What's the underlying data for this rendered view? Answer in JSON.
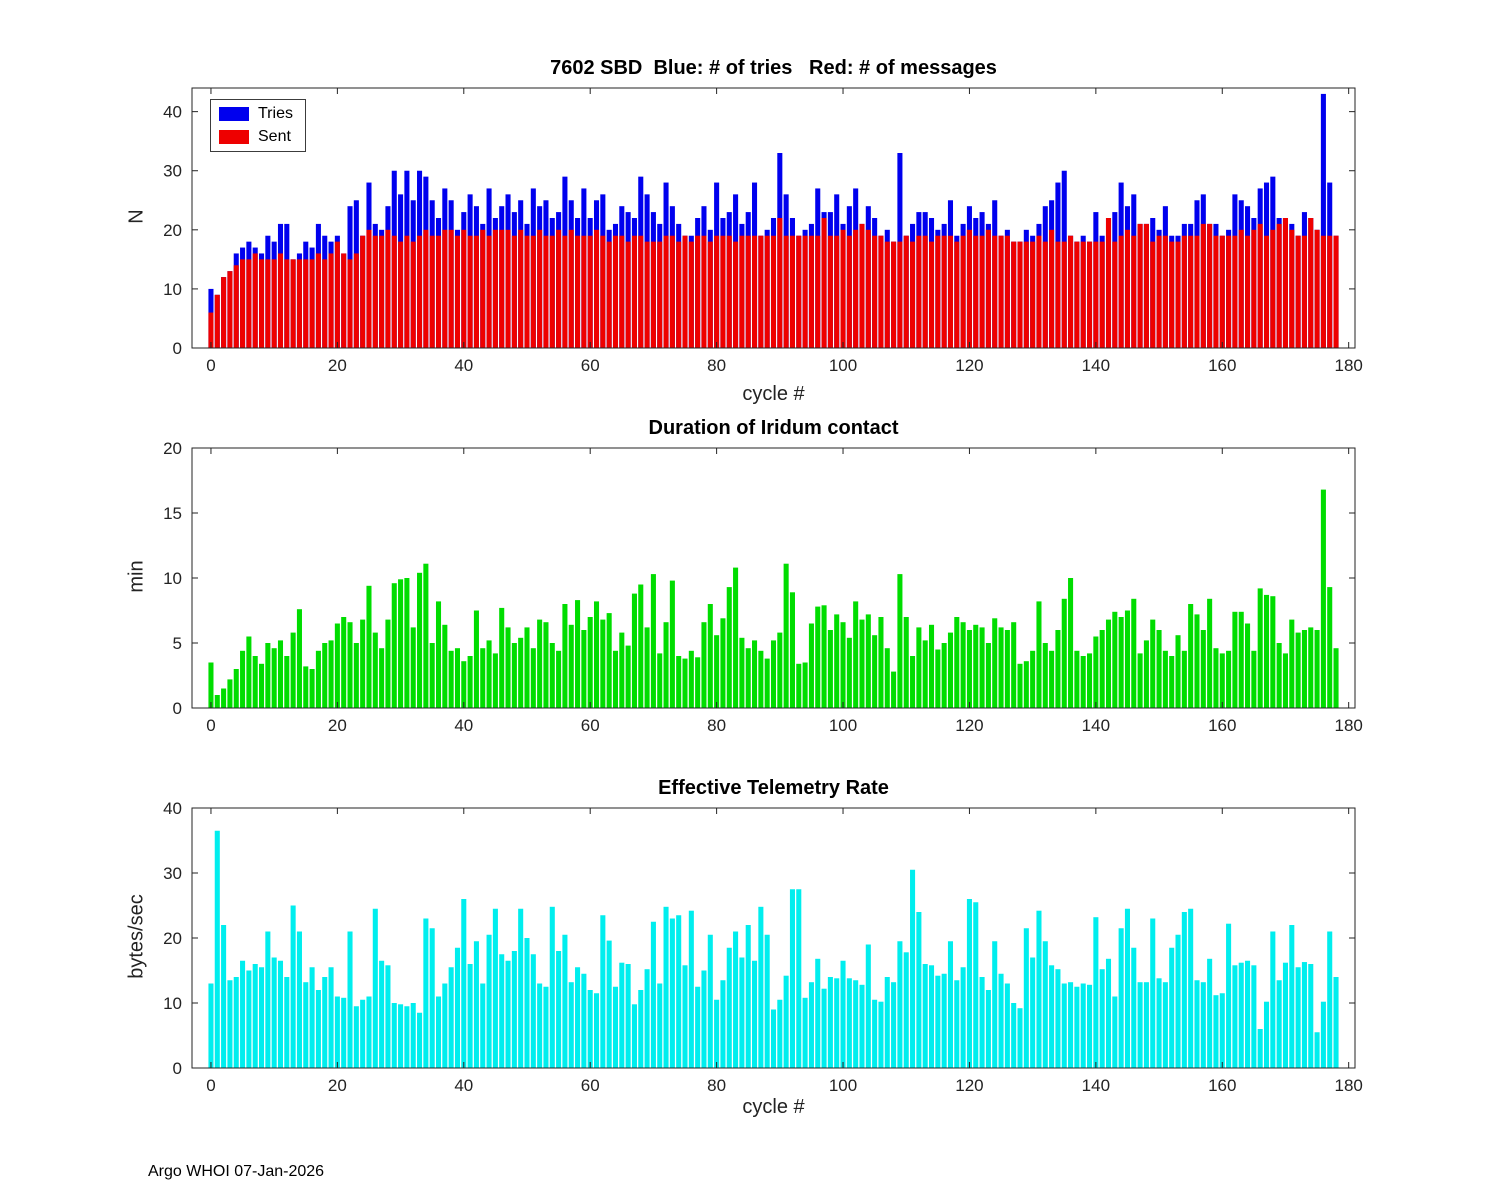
{
  "footer": {
    "text": "Argo WHOI 07-Jan-2026"
  },
  "chart_data": [
    {
      "type": "bar",
      "id": "tries-sent",
      "title": "7602 SBD  Blue: # of tries   Red: # of messages",
      "xlabel": "cycle #",
      "ylabel": "N",
      "xlim": [
        -3,
        181
      ],
      "ylim": [
        0,
        44
      ],
      "xticks": [
        0,
        20,
        40,
        60,
        80,
        100,
        120,
        140,
        160,
        180
      ],
      "yticks": [
        0,
        10,
        20,
        30,
        40
      ],
      "grid": false,
      "legend": {
        "position": "top-left",
        "entries": [
          {
            "label": "Tries",
            "color": "#0000EE"
          },
          {
            "label": "Sent",
            "color": "#EE0000"
          }
        ]
      },
      "x_is_cycle_index": true,
      "series": [
        {
          "name": "Tries",
          "color": "#0000EE",
          "values": [
            10,
            9,
            12,
            13,
            16,
            17,
            18,
            17,
            16,
            19,
            18,
            21,
            21,
            15,
            16,
            18,
            17,
            21,
            19,
            18,
            19,
            16,
            24,
            25,
            19,
            28,
            21,
            20,
            24,
            30,
            26,
            30,
            25,
            30,
            29,
            25,
            22,
            27,
            25,
            20,
            23,
            26,
            24,
            21,
            27,
            22,
            24,
            26,
            23,
            25,
            21,
            27,
            24,
            25,
            22,
            23,
            29,
            25,
            22,
            27,
            22,
            25,
            26,
            20,
            21,
            24,
            23,
            22,
            29,
            26,
            23,
            21,
            28,
            24,
            21,
            19,
            19,
            22,
            24,
            20,
            28,
            22,
            23,
            26,
            21,
            23,
            28,
            19,
            20,
            22,
            33,
            26,
            22,
            19,
            20,
            21,
            27,
            23,
            23,
            26,
            21,
            24,
            27,
            21,
            24,
            22,
            19,
            20,
            18,
            33,
            19,
            21,
            23,
            23,
            22,
            20,
            21,
            25,
            19,
            21,
            24,
            22,
            23,
            21,
            25,
            19,
            20,
            18,
            18,
            20,
            19,
            21,
            24,
            25,
            28,
            30,
            19,
            18,
            19,
            18,
            23,
            19,
            22,
            23,
            28,
            24,
            26,
            21,
            21,
            22,
            20,
            24,
            19,
            19,
            21,
            21,
            25,
            26,
            21,
            21,
            19,
            20,
            26,
            25,
            24,
            22,
            27,
            28,
            29,
            22,
            22,
            21,
            19,
            23,
            22,
            20,
            43,
            28,
            19
          ]
        },
        {
          "name": "Sent",
          "color": "#EE0000",
          "values": [
            6,
            9,
            12,
            13,
            14,
            15,
            15,
            16,
            15,
            15,
            15,
            16,
            15,
            15,
            15,
            15,
            15,
            16,
            15,
            16,
            18,
            16,
            15,
            16,
            19,
            20,
            19,
            19,
            20,
            19,
            18,
            19,
            18,
            19,
            20,
            19,
            19,
            20,
            20,
            19,
            20,
            19,
            19,
            20,
            19,
            20,
            20,
            20,
            19,
            20,
            19,
            19,
            20,
            19,
            19,
            20,
            19,
            20,
            19,
            19,
            19,
            20,
            19,
            18,
            19,
            19,
            18,
            19,
            19,
            18,
            18,
            18,
            19,
            19,
            18,
            19,
            18,
            19,
            19,
            18,
            19,
            19,
            19,
            18,
            19,
            19,
            19,
            19,
            19,
            19,
            22,
            19,
            19,
            19,
            19,
            19,
            19,
            22,
            19,
            19,
            20,
            19,
            20,
            21,
            20,
            19,
            19,
            18,
            18,
            18,
            19,
            18,
            19,
            19,
            18,
            19,
            19,
            19,
            18,
            19,
            20,
            19,
            19,
            20,
            19,
            19,
            19,
            18,
            18,
            18,
            18,
            19,
            18,
            20,
            18,
            18,
            19,
            18,
            18,
            18,
            18,
            18,
            22,
            18,
            19,
            20,
            19,
            21,
            21,
            18,
            19,
            19,
            18,
            18,
            19,
            19,
            19,
            21,
            21,
            19,
            19,
            19,
            19,
            20,
            19,
            20,
            21,
            19,
            20,
            21,
            22,
            20,
            19,
            19,
            22,
            20,
            19,
            19,
            19
          ]
        }
      ]
    },
    {
      "type": "bar",
      "id": "iridium-duration",
      "title": "Duration of Iridum contact",
      "xlabel": "",
      "ylabel": "min",
      "xlim": [
        -3,
        181
      ],
      "ylim": [
        0,
        20
      ],
      "xticks": [
        0,
        20,
        40,
        60,
        80,
        100,
        120,
        140,
        160,
        180
      ],
      "yticks": [
        0,
        5,
        10,
        15,
        20
      ],
      "grid": false,
      "x_is_cycle_index": true,
      "series": [
        {
          "name": "Duration",
          "color": "#00DD00",
          "values": [
            3.5,
            1.0,
            1.5,
            2.2,
            3.0,
            4.4,
            5.5,
            4.0,
            3.4,
            5.0,
            4.6,
            5.2,
            4.0,
            5.8,
            7.6,
            3.2,
            3.0,
            4.4,
            5.0,
            5.2,
            6.5,
            7.0,
            6.6,
            5.0,
            6.8,
            9.4,
            5.8,
            4.6,
            6.8,
            9.6,
            9.9,
            10.0,
            6.2,
            10.4,
            11.1,
            5.0,
            8.2,
            6.4,
            4.4,
            4.6,
            3.6,
            4.0,
            7.5,
            4.6,
            5.2,
            4.2,
            7.7,
            6.2,
            5.0,
            5.4,
            6.2,
            4.6,
            6.8,
            6.6,
            5.0,
            4.4,
            8.0,
            6.4,
            8.3,
            6.0,
            7.0,
            8.2,
            6.8,
            7.3,
            4.4,
            5.8,
            4.8,
            8.8,
            9.5,
            6.2,
            10.3,
            4.2,
            6.6,
            9.8,
            4.0,
            3.8,
            4.4,
            3.9,
            6.6,
            8.0,
            5.6,
            6.9,
            9.3,
            10.8,
            5.4,
            4.6,
            5.2,
            4.4,
            3.8,
            5.2,
            5.8,
            11.1,
            8.9,
            3.4,
            3.5,
            6.5,
            7.8,
            7.9,
            6.0,
            7.2,
            6.6,
            5.4,
            8.2,
            6.8,
            7.2,
            5.6,
            7.0,
            4.6,
            2.8,
            10.3,
            7.0,
            4.0,
            6.2,
            5.2,
            6.4,
            4.5,
            5.0,
            5.8,
            7.0,
            6.6,
            6.0,
            6.4,
            6.2,
            5.0,
            6.9,
            6.2,
            6.0,
            6.6,
            3.4,
            3.6,
            4.4,
            8.2,
            5.0,
            4.4,
            6.0,
            8.4,
            10.0,
            4.4,
            4.0,
            4.2,
            5.5,
            6.0,
            6.8,
            7.4,
            7.0,
            7.5,
            8.4,
            4.2,
            5.2,
            6.8,
            6.0,
            4.4,
            4.0,
            5.6,
            4.4,
            8.0,
            7.2,
            6.0,
            8.4,
            4.6,
            4.2,
            4.4,
            7.4,
            7.4,
            6.5,
            4.4,
            9.2,
            8.7,
            8.6,
            5.0,
            4.2,
            6.8,
            5.8,
            6.0,
            6.2,
            6.0,
            16.8,
            9.3,
            4.6
          ]
        }
      ]
    },
    {
      "type": "bar",
      "id": "telemetry-rate",
      "title": "Effective Telemetry Rate",
      "xlabel": "cycle #",
      "ylabel": "bytes/sec",
      "xlim": [
        -3,
        181
      ],
      "ylim": [
        0,
        40
      ],
      "xticks": [
        0,
        20,
        40,
        60,
        80,
        100,
        120,
        140,
        160,
        180
      ],
      "yticks": [
        0,
        10,
        20,
        30,
        40
      ],
      "grid": false,
      "x_is_cycle_index": true,
      "series": [
        {
          "name": "Rate",
          "color": "#00EEEE",
          "values": [
            13.0,
            36.5,
            22.0,
            13.5,
            14.0,
            16.5,
            15.0,
            16.0,
            15.5,
            21.0,
            17.0,
            16.5,
            14.0,
            25.0,
            21.0,
            13.2,
            15.5,
            12.0,
            14.0,
            15.5,
            11.0,
            10.8,
            21.0,
            9.5,
            10.5,
            11.0,
            24.5,
            16.5,
            15.8,
            10.0,
            9.8,
            9.5,
            10.0,
            8.5,
            23.0,
            21.5,
            11.0,
            13.0,
            15.5,
            18.5,
            26.0,
            16.0,
            19.5,
            13.0,
            20.5,
            24.5,
            17.5,
            16.5,
            18.0,
            24.5,
            20.0,
            17.5,
            13.0,
            12.5,
            24.8,
            18.0,
            20.5,
            13.2,
            15.5,
            14.5,
            12.0,
            11.5,
            23.5,
            19.6,
            12.5,
            16.2,
            16.0,
            9.8,
            12.0,
            15.2,
            22.5,
            13.0,
            24.8,
            23.0,
            23.5,
            15.8,
            24.2,
            12.5,
            15.0,
            20.5,
            10.5,
            13.5,
            18.5,
            21.0,
            17.0,
            22.0,
            16.5,
            24.8,
            20.5,
            9.0,
            10.5,
            14.2,
            27.5,
            27.5,
            10.8,
            13.2,
            16.8,
            12.2,
            14.0,
            13.8,
            16.5,
            13.8,
            13.5,
            12.8,
            19.0,
            10.5,
            10.2,
            14.0,
            13.2,
            19.5,
            17.8,
            30.5,
            24.0,
            16.0,
            15.8,
            14.2,
            14.5,
            19.5,
            13.5,
            15.5,
            26.0,
            25.5,
            14.0,
            12.0,
            19.5,
            14.5,
            13.0,
            10.0,
            9.2,
            21.5,
            17.0,
            24.2,
            19.5,
            15.8,
            15.2,
            13.0,
            13.2,
            12.5,
            13.0,
            12.8,
            23.2,
            15.2,
            16.8,
            11.0,
            21.5,
            24.5,
            18.5,
            13.2,
            13.2,
            23.0,
            13.8,
            13.2,
            18.5,
            20.5,
            24.0,
            24.5,
            13.5,
            13.2,
            16.8,
            11.2,
            11.5,
            22.2,
            15.8,
            16.2,
            16.5,
            15.8,
            6.0,
            10.2,
            21.0,
            13.5,
            16.2,
            22.0,
            15.5,
            16.3,
            16.0,
            5.5,
            10.2,
            21.0,
            14.0
          ]
        }
      ]
    }
  ]
}
